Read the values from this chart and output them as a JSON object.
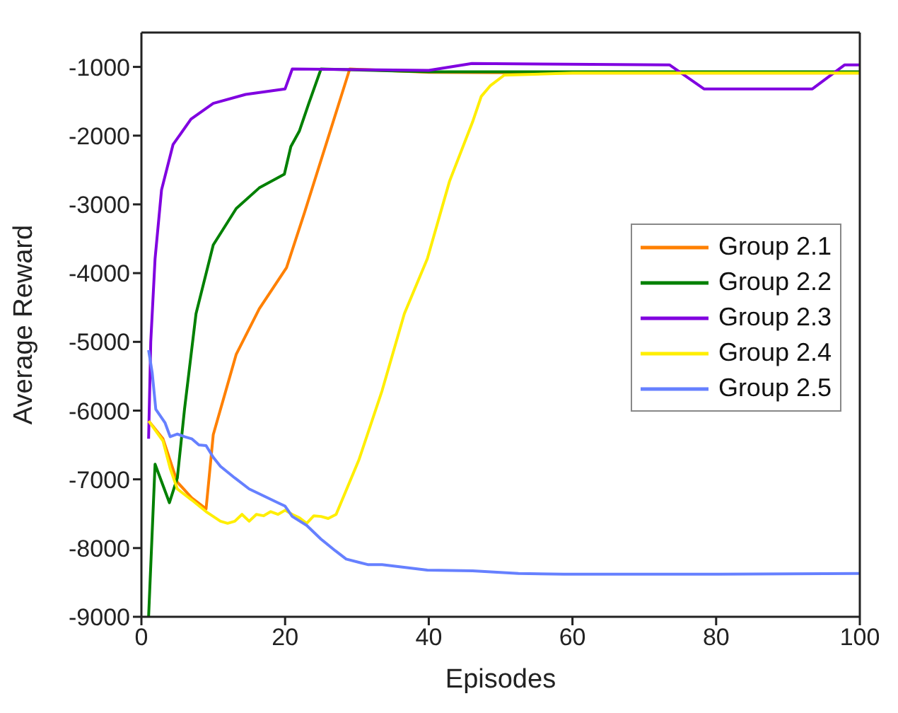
{
  "chart_data": {
    "type": "line",
    "xlabel": "Episodes",
    "ylabel": "Average Reward",
    "xlim": [
      0,
      100
    ],
    "ylim": [
      -9000,
      -500
    ],
    "xticks": [
      0,
      20,
      40,
      60,
      80,
      100
    ],
    "yticks": [
      -9000,
      -8000,
      -7000,
      -6000,
      -5000,
      -4000,
      -3000,
      -2000,
      -1000
    ],
    "legend": "right",
    "marker": "none",
    "line_style": "solid",
    "series": [
      {
        "name": "Group 2.1",
        "color": "#ff8000",
        "x": [
          1,
          3,
          5,
          7,
          9,
          10,
          13.2,
          16.4,
          20.2,
          22.7,
          25.9,
          29,
          40,
          60,
          80,
          100
        ],
        "values": [
          -6150,
          -6410,
          -7040,
          -7270,
          -7430,
          -6350,
          -5180,
          -4520,
          -3920,
          -3120,
          -2060,
          -1030,
          -1080,
          -1090,
          -1090,
          -1090
        ]
      },
      {
        "name": "Group 2.2",
        "color": "#008000",
        "x": [
          1,
          1.9,
          3.9,
          5,
          6,
          7.6,
          10,
          13.2,
          16.4,
          19.9,
          20.8,
          22,
          23.3,
          25,
          40,
          60,
          80,
          100
        ],
        "values": [
          -9000,
          -6780,
          -7340,
          -6980,
          -5980,
          -4590,
          -3590,
          -3060,
          -2760,
          -2560,
          -2160,
          -1930,
          -1530,
          -1030,
          -1070,
          -1070,
          -1070,
          -1070
        ]
      },
      {
        "name": "Group 2.3",
        "color": "#8000e0",
        "x": [
          1,
          1.3,
          1.9,
          2.8,
          4.4,
          6.9,
          10,
          14.5,
          20,
          21,
          40,
          46,
          73.5,
          78.3,
          93.4,
          97.9,
          100
        ],
        "values": [
          -6410,
          -5000,
          -3790,
          -2790,
          -2130,
          -1760,
          -1530,
          -1400,
          -1320,
          -1030,
          -1050,
          -950,
          -970,
          -1320,
          -1320,
          -970,
          -970
        ]
      },
      {
        "name": "Group 2.4",
        "color": "#ffee00",
        "x": [
          1,
          3,
          4,
          5,
          7,
          9,
          11,
          12,
          13,
          14,
          15,
          16,
          17,
          18,
          19,
          20,
          21,
          22,
          23,
          24,
          25,
          26,
          27.1,
          30.3,
          33.5,
          36.6,
          39.8,
          42.9,
          46.1,
          47.3,
          48.6,
          50.5,
          60,
          80,
          100
        ],
        "values": [
          -6150,
          -6440,
          -6840,
          -7140,
          -7300,
          -7470,
          -7610,
          -7640,
          -7610,
          -7510,
          -7610,
          -7510,
          -7530,
          -7470,
          -7510,
          -7450,
          -7510,
          -7560,
          -7640,
          -7530,
          -7540,
          -7570,
          -7510,
          -6710,
          -5710,
          -4590,
          -3790,
          -2660,
          -1800,
          -1430,
          -1270,
          -1120,
          -1090,
          -1090,
          -1090
        ]
      },
      {
        "name": "Group 2.5",
        "color": "#6680ff",
        "x": [
          1,
          1.5,
          2,
          3.3,
          4,
          5,
          6,
          7,
          8,
          9,
          10,
          11,
          13,
          15,
          17,
          19,
          20,
          21,
          23,
          25,
          27,
          28.5,
          31.5,
          33.5,
          39.8,
          46.1,
          52.5,
          58.8,
          80,
          100
        ],
        "values": [
          -5120,
          -5450,
          -5980,
          -6180,
          -6380,
          -6340,
          -6380,
          -6410,
          -6500,
          -6510,
          -6680,
          -6810,
          -6980,
          -7140,
          -7240,
          -7340,
          -7390,
          -7540,
          -7670,
          -7870,
          -8040,
          -8160,
          -8240,
          -8240,
          -8320,
          -8330,
          -8370,
          -8380,
          -8380,
          -8370
        ]
      }
    ]
  }
}
